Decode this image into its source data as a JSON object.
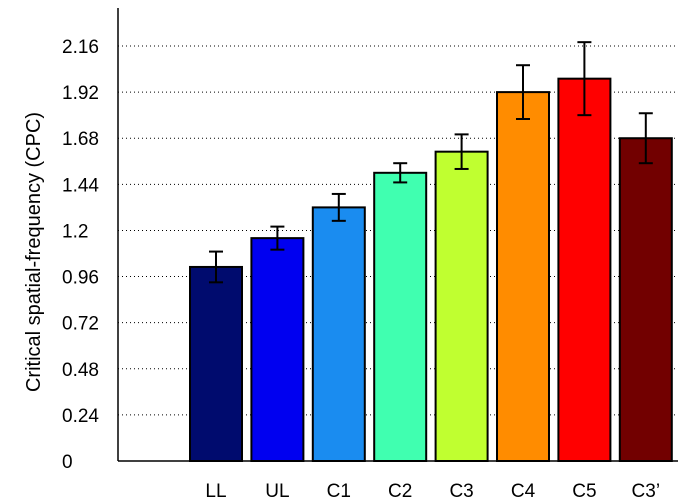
{
  "chart_data": {
    "type": "bar",
    "title": "",
    "xlabel": "",
    "ylabel": "Critical spatial-frequency (CPC)",
    "categories": [
      "LL",
      "UL",
      "C1",
      "C2",
      "C3",
      "C4",
      "C5",
      "C3’"
    ],
    "values": [
      1.01,
      1.16,
      1.32,
      1.5,
      1.61,
      1.92,
      1.99,
      1.68
    ],
    "errors": [
      0.08,
      0.06,
      0.07,
      0.05,
      0.09,
      0.14,
      0.19,
      0.13
    ],
    "colors": [
      "#000b6e",
      "#0000f0",
      "#1a8cf0",
      "#40ffb0",
      "#c0ff30",
      "#ff8c00",
      "#ff0000",
      "#720000"
    ],
    "yticks": [
      0,
      0.24,
      0.48,
      0.72,
      0.96,
      1.2,
      1.44,
      1.68,
      1.92,
      2.16
    ],
    "ytick_labels": [
      "0",
      "0.24",
      "0.48",
      "0.72",
      "0.96",
      "1.2",
      "1.44",
      "1.68",
      "1.92",
      "2.16"
    ],
    "ylim": [
      0,
      2.4
    ],
    "grid": "horizontal-dotted",
    "legend": "none"
  }
}
